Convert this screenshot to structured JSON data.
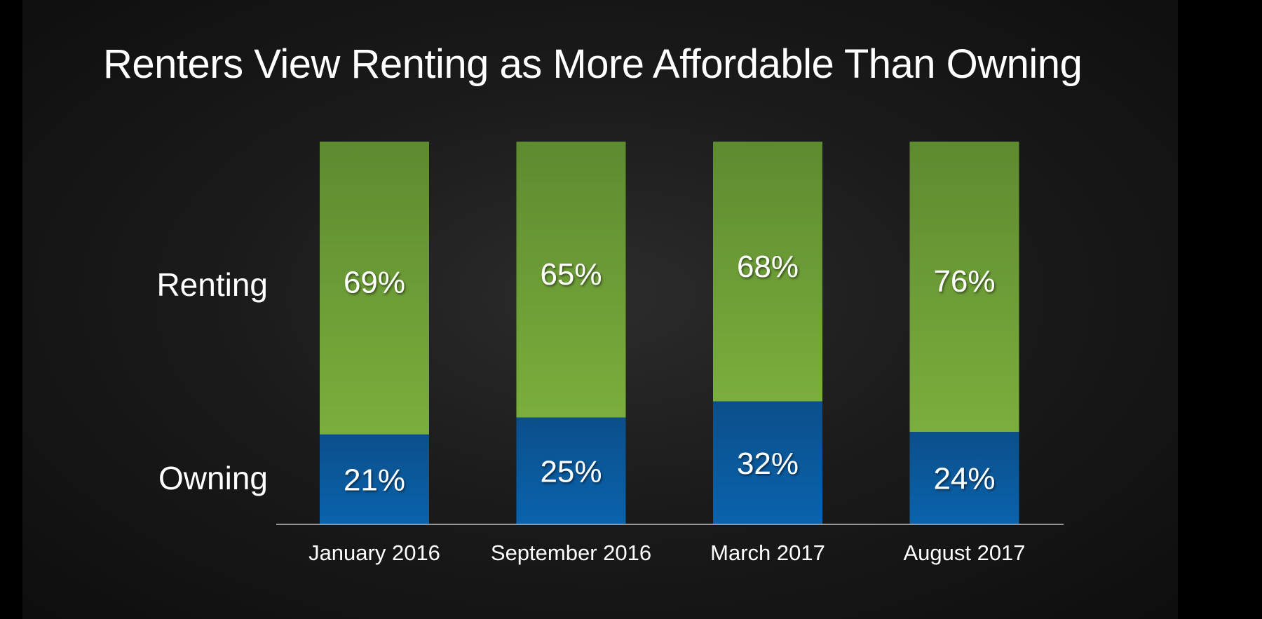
{
  "slide": {
    "title": "Renters View Renting as More Affordable Than Owning"
  },
  "colors": {
    "renting": "#6d9c35",
    "owning": "#0b5a9e",
    "text": "#ffffff",
    "axis": "#bfbfbf"
  },
  "chart_data": {
    "type": "bar",
    "stacked": true,
    "title": "Renters View Renting as More Affordable Than Owning",
    "categories": [
      "January 2016",
      "September 2016",
      "March 2017",
      "August 2017"
    ],
    "series": [
      {
        "name": "Owning",
        "values": [
          21,
          25,
          32,
          24
        ],
        "labels": [
          "21%",
          "25%",
          "32%",
          "24%"
        ],
        "color": "#0b5a9e"
      },
      {
        "name": "Renting",
        "values": [
          69,
          65,
          68,
          76
        ],
        "labels": [
          "69%",
          "65%",
          "68%",
          "76%"
        ],
        "color": "#6d9c35"
      }
    ],
    "row_labels": [
      "Renting",
      "Owning"
    ],
    "unit": "%",
    "grid": false,
    "legend": "none"
  }
}
